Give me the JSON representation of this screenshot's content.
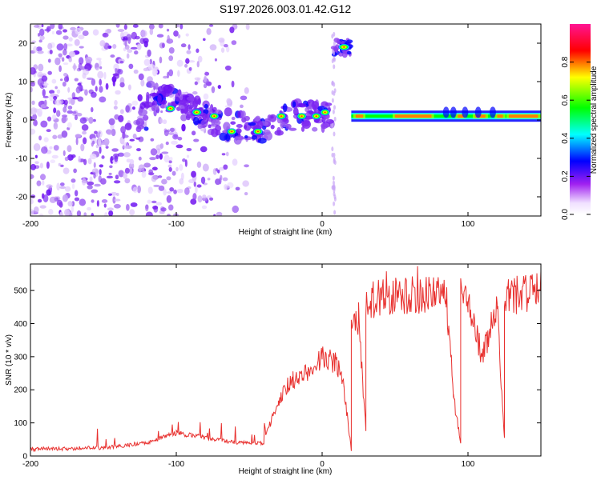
{
  "title": "S197.2026.003.01.42.G12",
  "chart_data": [
    {
      "type": "heatmap",
      "name": "spectrogram",
      "xlabel": "Height of straight line (km)",
      "ylabel": "Frequency (Hz)",
      "xlim": [
        -200,
        150
      ],
      "ylim": [
        -25,
        25
      ],
      "x_ticks": [
        -200,
        -100,
        0,
        100
      ],
      "y_ticks": [
        -20,
        -10,
        0,
        10,
        20
      ],
      "colorbar": {
        "label": "Normalized spectral amplitude",
        "range": [
          0,
          1
        ],
        "ticks": [
          "0.0",
          "0.2",
          "0.4",
          "0.6",
          "0.8"
        ],
        "colors": [
          "#f0e0ff",
          "#a020f0",
          "#0000ff",
          "#00ffff",
          "#00ff00",
          "#ffff00",
          "#ff0000",
          "#ff1493"
        ]
      },
      "features": [
        {
          "description": "scattered noise",
          "x_range": [
            -200,
            -50
          ],
          "freq_range": [
            -25,
            25
          ],
          "amplitude": 0.1
        },
        {
          "description": "signal trend",
          "points": [
            [
              -120,
              6
            ],
            [
              -100,
              5
            ],
            [
              -80,
              1
            ],
            [
              -60,
              -2
            ],
            [
              -40,
              -2
            ],
            [
              -20,
              1
            ],
            [
              0,
              1
            ],
            [
              8,
              1
            ]
          ]
        },
        {
          "description": "narrow band at 19 Hz",
          "x_range": [
            8,
            20
          ],
          "freq": 19,
          "amplitude": 0.7
        },
        {
          "description": "carrier line",
          "x_range": [
            20,
            150
          ],
          "freq": 1,
          "amplitude": 0.85
        }
      ]
    },
    {
      "type": "line",
      "name": "snr",
      "xlabel": "Height of straight line (km)",
      "ylabel": "SNR (10 * v/v)",
      "xlim": [
        -200,
        150
      ],
      "ylim": [
        0,
        580
      ],
      "x_ticks": [
        -200,
        -100,
        0,
        100
      ],
      "y_ticks": [
        0,
        100,
        200,
        300,
        400,
        500
      ],
      "color": "#e8302e",
      "series_segments": [
        {
          "x": [
            -200,
            -150
          ],
          "y": [
            20,
            25
          ]
        },
        {
          "x": [
            -150,
            -120
          ],
          "y": [
            25,
            40
          ]
        },
        {
          "x": [
            -120,
            -100
          ],
          "y": [
            40,
            70
          ]
        },
        {
          "x": [
            -100,
            -60
          ],
          "y": [
            70,
            40
          ]
        },
        {
          "x": [
            -60,
            -40
          ],
          "y": [
            40,
            40
          ]
        },
        {
          "x": [
            -40,
            -30
          ],
          "y": [
            40,
            170
          ]
        },
        {
          "x": [
            -30,
            -20
          ],
          "y": [
            170,
            230
          ]
        },
        {
          "x": [
            -20,
            -10
          ],
          "y": [
            230,
            250
          ]
        },
        {
          "x": [
            -10,
            0
          ],
          "y": [
            250,
            300
          ]
        },
        {
          "x": [
            0,
            10
          ],
          "y": [
            300,
            280
          ]
        },
        {
          "x": [
            10,
            15
          ],
          "y": [
            280,
            200
          ]
        },
        {
          "x": [
            15,
            20
          ],
          "y": [
            200,
            20
          ]
        },
        {
          "x": [
            20,
            25
          ],
          "y": [
            400,
            400
          ]
        },
        {
          "x": [
            25,
            30
          ],
          "y": [
            400,
            80
          ]
        },
        {
          "x": [
            30,
            40
          ],
          "y": [
            450,
            480
          ]
        },
        {
          "x": [
            40,
            85
          ],
          "y": [
            480,
            490
          ]
        },
        {
          "x": [
            85,
            90
          ],
          "y": [
            490,
            180
          ]
        },
        {
          "x": [
            90,
            95
          ],
          "y": [
            180,
            40
          ]
        },
        {
          "x": [
            95,
            100
          ],
          "y": [
            480,
            480
          ]
        },
        {
          "x": [
            100,
            110
          ],
          "y": [
            450,
            300
          ]
        },
        {
          "x": [
            110,
            120
          ],
          "y": [
            300,
            450
          ]
        },
        {
          "x": [
            120,
            125
          ],
          "y": [
            450,
            50
          ]
        },
        {
          "x": [
            125,
            150
          ],
          "y": [
            480,
            500
          ]
        }
      ]
    }
  ]
}
